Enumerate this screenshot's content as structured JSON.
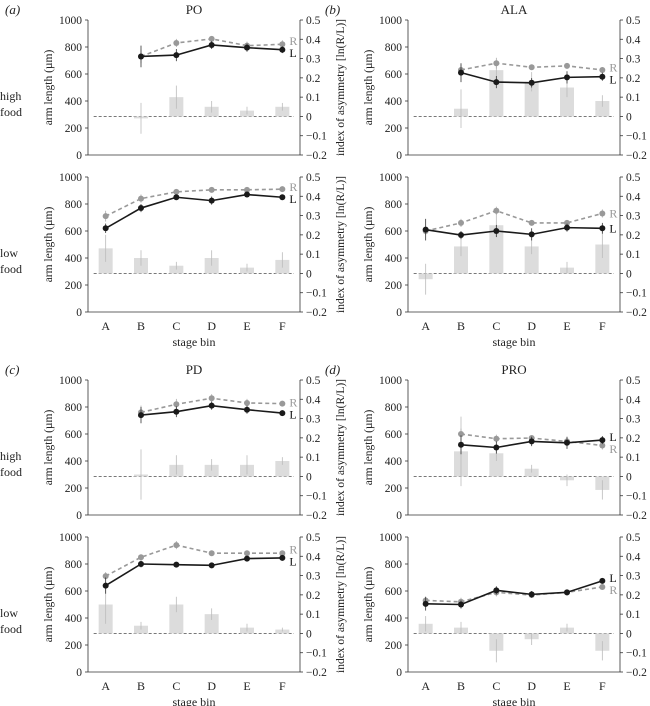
{
  "chart_data": [
    {
      "panel": "(a)",
      "title": "PO",
      "type": "line+bar",
      "categories": [
        "A",
        "B",
        "C",
        "D",
        "E",
        "F"
      ],
      "xlabel": "stage bin",
      "ylabel_left": "arm length (µm)",
      "ylabel_right": "index of asymmetry [ln(R/L)]",
      "left_ylim": [
        0,
        1000
      ],
      "left_ticks": [
        "0",
        "200",
        "400",
        "600",
        "800",
        "1000"
      ],
      "right_ylim": [
        -0.2,
        0.5
      ],
      "right_ticks": [
        "−0.2",
        "−0.1",
        "0",
        "0.1",
        "0.2",
        "0.3",
        "0.4",
        "0.5"
      ],
      "subplots": [
        {
          "row_label": [
            "high",
            "food"
          ],
          "R_label": "R",
          "L_label": "L",
          "R": [
            null,
            730,
            830,
            860,
            810,
            820
          ],
          "L": [
            null,
            730,
            740,
            815,
            795,
            780
          ],
          "R_err": [
            null,
            50,
            30,
            20,
            30,
            30
          ],
          "L_err": [
            null,
            80,
            45,
            30,
            30,
            25
          ],
          "asym": [
            null,
            -0.01,
            0.1,
            0.05,
            0.03,
            0.05
          ],
          "asym_err": [
            null,
            0.08,
            0.06,
            0.03,
            0.02,
            0.02
          ]
        },
        {
          "row_label": [
            "low",
            "food"
          ],
          "R_label": "R",
          "L_label": "L",
          "R": [
            710,
            840,
            890,
            905,
            905,
            910
          ],
          "L": [
            620,
            770,
            850,
            825,
            870,
            850
          ],
          "R_err": [
            40,
            30,
            20,
            20,
            20,
            20
          ],
          "L_err": [
            35,
            30,
            20,
            30,
            20,
            20
          ],
          "asym": [
            0.13,
            0.08,
            0.04,
            0.08,
            0.03,
            0.07
          ],
          "asym_err": [
            0.07,
            0.04,
            0.02,
            0.04,
            0.02,
            0.04
          ]
        }
      ]
    },
    {
      "panel": "(b)",
      "title": "ALA",
      "type": "line+bar",
      "categories": [
        "A",
        "B",
        "C",
        "D",
        "E",
        "F"
      ],
      "xlabel": "stage bin",
      "ylabel_left": "arm length (µm)",
      "ylabel_right": "index of asymmetry [ln(R/L)]",
      "left_ylim": [
        0,
        1000
      ],
      "left_ticks": [
        "0",
        "200",
        "400",
        "600",
        "800",
        "1000"
      ],
      "right_ylim": [
        -0.2,
        0.5
      ],
      "right_ticks": [
        "−0.2",
        "−0.1",
        "0",
        "0.1",
        "0.2",
        "0.3",
        "0.4",
        "0.5"
      ],
      "subplots": [
        {
          "row_label": [],
          "R_label": "R",
          "L_label": "L",
          "R": [
            null,
            630,
            680,
            650,
            660,
            630
          ],
          "L": [
            null,
            610,
            540,
            535,
            575,
            580
          ],
          "R_err": [
            null,
            40,
            40,
            20,
            20,
            20
          ],
          "L_err": [
            null,
            70,
            45,
            35,
            45,
            30
          ],
          "asym": [
            null,
            0.04,
            0.24,
            0.18,
            0.15,
            0.08
          ],
          "asym_err": [
            null,
            0.1,
            0.05,
            0.05,
            0.05,
            0.03
          ]
        },
        {
          "row_label": [],
          "R_label": "R",
          "L_label": "L",
          "R": [
            600,
            660,
            750,
            660,
            660,
            730
          ],
          "L": [
            610,
            570,
            600,
            575,
            625,
            620
          ],
          "R_err": [
            30,
            30,
            30,
            20,
            20,
            30
          ],
          "L_err": [
            80,
            30,
            45,
            45,
            30,
            40
          ],
          "asym": [
            -0.03,
            0.14,
            0.25,
            0.14,
            0.03,
            0.15
          ],
          "asym_err": [
            0.08,
            0.05,
            0.06,
            0.04,
            0.03,
            0.07
          ]
        }
      ]
    },
    {
      "panel": "(c)",
      "title": "PD",
      "type": "line+bar",
      "categories": [
        "A",
        "B",
        "C",
        "D",
        "E",
        "F"
      ],
      "xlabel": "stage bin",
      "ylabel_left": "arm length (µm)",
      "ylabel_right": "index of asymmetry [ln(R/L)]",
      "left_ylim": [
        0,
        1000
      ],
      "left_ticks": [
        "0",
        "200",
        "400",
        "600",
        "800",
        "1000"
      ],
      "right_ylim": [
        -0.2,
        0.5
      ],
      "right_ticks": [
        "−0.2",
        "−0.1",
        "0",
        "0.1",
        "0.2",
        "0.3",
        "0.4",
        "0.5"
      ],
      "subplots": [
        {
          "row_label": [
            "high",
            "food"
          ],
          "R_label": "R",
          "L_label": "L",
          "R": [
            null,
            760,
            820,
            865,
            830,
            825
          ],
          "L": [
            null,
            740,
            765,
            810,
            780,
            755
          ],
          "R_err": [
            null,
            50,
            40,
            30,
            30,
            20
          ],
          "L_err": [
            null,
            60,
            40,
            30,
            30,
            20
          ],
          "asym": [
            null,
            0.01,
            0.06,
            0.06,
            0.06,
            0.08
          ],
          "asym_err": [
            null,
            0.13,
            0.05,
            0.03,
            0.05,
            0.02
          ]
        },
        {
          "row_label": [
            "low",
            "food"
          ],
          "R_label": "R",
          "L_label": "L",
          "R": [
            710,
            850,
            940,
            880,
            880,
            880
          ],
          "L": [
            640,
            800,
            795,
            790,
            840,
            845
          ],
          "R_err": [
            30,
            20,
            30,
            20,
            20,
            20
          ],
          "L_err": [
            60,
            25,
            20,
            20,
            20,
            20
          ],
          "asym": [
            0.15,
            0.04,
            0.15,
            0.1,
            0.03,
            0.02
          ],
          "asym_err": [
            0.1,
            0.02,
            0.04,
            0.03,
            0.02,
            0.01
          ]
        }
      ]
    },
    {
      "panel": "(d)",
      "title": "PRO",
      "type": "line+bar",
      "categories": [
        "A",
        "B",
        "C",
        "D",
        "E",
        "F"
      ],
      "xlabel": "stage bin",
      "ylabel_left": "arm length (µm)",
      "ylabel_right": "index of asymmetry [ln(R/L)]",
      "left_ylim": [
        0,
        1000
      ],
      "left_ticks": [
        "0",
        "200",
        "400",
        "600",
        "800",
        "1000"
      ],
      "right_ylim": [
        -0.2,
        0.5
      ],
      "right_ticks": [
        "−0.2",
        "−0.1",
        "0",
        "0.1",
        "0.2",
        "0.3",
        "0.4",
        "0.5"
      ],
      "subplots": [
        {
          "row_label": [],
          "R_label": "R",
          "L_label": "L",
          "L_label_first": true,
          "R": [
            null,
            600,
            565,
            570,
            545,
            515
          ],
          "L": [
            null,
            520,
            500,
            545,
            535,
            555
          ],
          "R_err": [
            null,
            40,
            30,
            20,
            30,
            30
          ],
          "L_err": [
            null,
            70,
            45,
            35,
            45,
            30
          ],
          "asym": [
            null,
            0.13,
            0.12,
            0.04,
            -0.02,
            -0.07
          ],
          "asym_err": [
            null,
            0.18,
            0.04,
            0.02,
            0.03,
            0.05
          ]
        },
        {
          "row_label": [],
          "R_label": "R",
          "L_label": "L",
          "L_label_first": true,
          "R": [
            530,
            520,
            590,
            570,
            590,
            630
          ],
          "L": [
            505,
            500,
            605,
            575,
            590,
            675
          ],
          "R_err": [
            30,
            30,
            30,
            20,
            20,
            20
          ],
          "L_err": [
            50,
            30,
            30,
            25,
            20,
            20
          ],
          "asym": [
            0.05,
            0.03,
            -0.09,
            -0.03,
            0.03,
            -0.09
          ],
          "asym_err": [
            0.04,
            0.03,
            0.06,
            0.03,
            0.02,
            0.05
          ]
        }
      ]
    }
  ]
}
